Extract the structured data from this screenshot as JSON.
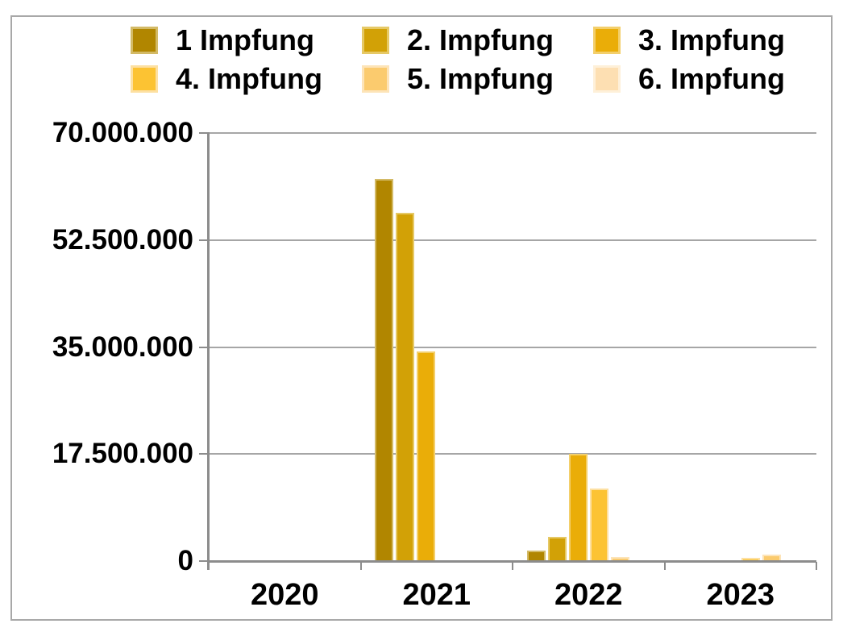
{
  "chart_data": {
    "type": "bar",
    "title": "",
    "grid": "horizontal",
    "legend_position": "top",
    "categories": [
      "2020",
      "2021",
      "2022",
      "2023"
    ],
    "series": [
      {
        "name": "1 Impfung",
        "color": "#B18600",
        "border_color": "#D3BA66",
        "values": [
          0,
          62500000,
          1700000,
          0
        ]
      },
      {
        "name": "2. Impfung",
        "color": "#D2A106",
        "border_color": "#E6C966",
        "values": [
          0,
          57000000,
          4000000,
          0
        ]
      },
      {
        "name": "3. Impfung",
        "color": "#EAAD08",
        "border_color": "#F3CF6B",
        "values": [
          0,
          34300000,
          17500000,
          0
        ]
      },
      {
        "name": "4. Impfung",
        "color": "#FCC333",
        "border_color": "#FDE0A2",
        "values": [
          0,
          0,
          11800000,
          500000
        ]
      },
      {
        "name": "5. Impfung",
        "color": "#FBCB6E",
        "border_color": "#FDE4B8",
        "values": [
          0,
          0,
          700000,
          1100000
        ]
      },
      {
        "name": "6. Impfung",
        "color": "#FDDFB2",
        "border_color": "#FEF0D9",
        "values": [
          0,
          0,
          0,
          0
        ]
      }
    ],
    "y_axis": {
      "ylim": [
        0,
        70000000
      ],
      "tick_values": [
        70000000,
        52500000,
        35000000,
        17500000,
        0
      ],
      "tick_labels": [
        "70.000.000",
        "52.500.000",
        "35.000.000",
        "17.500.000",
        "0"
      ]
    }
  },
  "colors": {
    "axis": "#8C8C8C",
    "gridline": "#A6A6A6",
    "frame_border": "#A8A8A8",
    "text": "#000000"
  }
}
